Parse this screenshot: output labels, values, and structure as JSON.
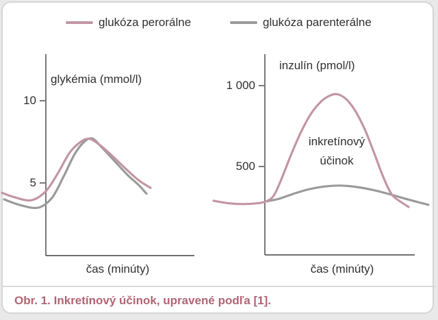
{
  "legend": {
    "items": [
      {
        "label": "glukóza perorálne",
        "color": "#c296a2"
      },
      {
        "label": "glukóza parenterálne",
        "color": "#9a9a9a"
      }
    ]
  },
  "caption": "Obr. 1. Inkretínový účinok, upravené podľa [1].",
  "colors": {
    "oral": "#c296a2",
    "parenteral": "#9a9a9a",
    "axis": "#404040",
    "text": "#2f2f2f",
    "caption": "#b06574",
    "card_border": "#d6d6d6",
    "divider": "#d9d9d9"
  },
  "chart_data": [
    {
      "type": "line",
      "title": "glykémia (mmol/l)",
      "ylabel": "glykémia (mmol/l)",
      "xlabel": "čas (minúty)",
      "yticks": [
        5,
        10
      ],
      "ytick_labels": [
        "5",
        "10"
      ],
      "ylim": [
        0,
        12.7
      ],
      "x_units": "schematic time, no x ticks shown (px positions)",
      "grid": false,
      "series": [
        {
          "name": "glukóza parenterálne",
          "color": "#9a9a9a",
          "points": [
            [
              6,
              4.0
            ],
            [
              30,
              3.65
            ],
            [
              56,
              3.5
            ],
            [
              76,
              4.1
            ],
            [
              93,
              5.4
            ],
            [
              109,
              6.75
            ],
            [
              123,
              7.5
            ],
            [
              135,
              7.7
            ],
            [
              149,
              7.15
            ],
            [
              167,
              6.35
            ],
            [
              186,
              5.5
            ],
            [
              202,
              4.9
            ],
            [
              214,
              4.35
            ]
          ]
        },
        {
          "name": "glukóza perorálne",
          "color": "#c296a2",
          "points": [
            [
              3,
              4.4
            ],
            [
              22,
              4.12
            ],
            [
              46,
              3.95
            ],
            [
              67,
              4.5
            ],
            [
              84,
              5.55
            ],
            [
              102,
              6.85
            ],
            [
              118,
              7.5
            ],
            [
              131,
              7.68
            ],
            [
              146,
              7.3
            ],
            [
              164,
              6.65
            ],
            [
              184,
              5.85
            ],
            [
              203,
              5.15
            ],
            [
              220,
              4.7
            ]
          ]
        }
      ]
    },
    {
      "type": "line",
      "title": "inzulín (pmol/l)",
      "ylabel": "inzulín (pmol/l)",
      "xlabel": "čas (minúty)",
      "yticks": [
        500,
        1000
      ],
      "ytick_labels": [
        "500",
        "1 000"
      ],
      "ylim": [
        0,
        1190
      ],
      "x_units": "schematic time, no x ticks shown (px positions)",
      "grid": false,
      "annotation": [
        "inkretínový",
        "účinok"
      ],
      "series": [
        {
          "name": "glukóza parenterálne",
          "color": "#9a9a9a",
          "points": [
            [
              388,
              283
            ],
            [
              408,
              301
            ],
            [
              428,
              330
            ],
            [
              450,
              358
            ],
            [
              473,
              376
            ],
            [
              497,
              382
            ],
            [
              522,
              373
            ],
            [
              548,
              352
            ],
            [
              573,
              324
            ],
            [
              598,
              294
            ],
            [
              626,
              263
            ]
          ]
        },
        {
          "name": "glukóza perorálne",
          "color": "#c296a2",
          "points": [
            [
              312,
              288
            ],
            [
              334,
              273
            ],
            [
              355,
              268
            ],
            [
              374,
              272
            ],
            [
              388,
              283
            ],
            [
              400,
              320
            ],
            [
              412,
              430
            ],
            [
              426,
              580
            ],
            [
              440,
              715
            ],
            [
              455,
              830
            ],
            [
              470,
              905
            ],
            [
              482,
              938
            ],
            [
              493,
              947
            ],
            [
              506,
              916
            ],
            [
              519,
              845
            ],
            [
              533,
              730
            ],
            [
              547,
              580
            ],
            [
              560,
              435
            ],
            [
              572,
              330
            ],
            [
              584,
              286
            ],
            [
              597,
              250
            ]
          ]
        }
      ]
    }
  ]
}
